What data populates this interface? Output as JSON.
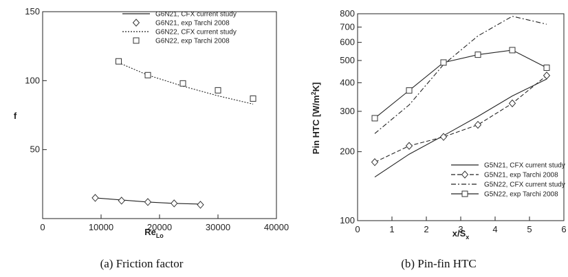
{
  "chart_data": [
    {
      "type": "line",
      "caption": "(a) Friction factor",
      "ylabel": "f",
      "xlabel_main": "Re",
      "xlabel_sub": "Lo",
      "xlim": [
        0,
        40000
      ],
      "ylim": [
        0,
        150
      ],
      "xticks": [
        0,
        10000,
        20000,
        30000,
        40000
      ],
      "yticks": [
        50,
        100,
        150
      ],
      "grid": false,
      "legend_position": "top-right",
      "series": [
        {
          "name": "G6N21, CFX current study",
          "style": "solid",
          "marker": "none",
          "x": [
            9000,
            13500,
            18000,
            22500,
            27000
          ],
          "y": [
            15,
            13.5,
            12,
            11,
            10.5
          ]
        },
        {
          "name": "G6N21, exp Tarchi 2008",
          "style": "none",
          "marker": "diamond",
          "x": [
            9000,
            13500,
            18000,
            22500,
            27000
          ],
          "y": [
            15,
            13,
            12,
            11,
            10
          ]
        },
        {
          "name": "G6N22, CFX current study",
          "style": "dotted",
          "marker": "none",
          "x": [
            13000,
            18000,
            24000,
            30000,
            36000
          ],
          "y": [
            113,
            104,
            96,
            89,
            83
          ]
        },
        {
          "name": "G6N22, exp Tarchi 2008",
          "style": "none",
          "marker": "square",
          "x": [
            13000,
            18000,
            24000,
            30000,
            36000
          ],
          "y": [
            114,
            104,
            98,
            93,
            87
          ]
        }
      ]
    },
    {
      "type": "line",
      "caption": "(b) Pin-fin HTC",
      "ylabel_pre": "Pin HTC [W/m",
      "ylabel_sup": "2",
      "ylabel_post": "K]",
      "xlabel_main": "x/S",
      "xlabel_sub": "x",
      "xlim": [
        0,
        6
      ],
      "ylim": [
        100,
        800
      ],
      "yscale": "log",
      "xticks": [
        0,
        1,
        2,
        3,
        4,
        5,
        6
      ],
      "yticks": [
        100,
        200,
        300,
        400,
        500,
        600,
        700,
        800
      ],
      "grid": false,
      "legend_position": "bottom-right",
      "series": [
        {
          "name": "G5N21, CFX current study",
          "style": "solid",
          "marker": "none",
          "x": [
            0.5,
            1.5,
            2.5,
            3.5,
            4.5,
            5.5
          ],
          "y": [
            155,
            195,
            235,
            285,
            350,
            415
          ]
        },
        {
          "name": "G5N21, exp Tarchi 2008",
          "style": "dashed",
          "marker": "diamond",
          "x": [
            0.5,
            1.5,
            2.5,
            3.5,
            4.5,
            5.5
          ],
          "y": [
            180,
            212,
            232,
            262,
            325,
            430
          ]
        },
        {
          "name": "G5N22, CFX current study",
          "style": "dashdot",
          "marker": "none",
          "x": [
            0.5,
            1.5,
            2.5,
            3.5,
            4.5,
            5.5
          ],
          "y": [
            240,
            320,
            480,
            640,
            780,
            720
          ]
        },
        {
          "name": "G5N22, exp Tarchi 2008",
          "style": "solid",
          "marker": "square",
          "x": [
            0.5,
            1.5,
            2.5,
            3.5,
            4.5,
            5.5
          ],
          "y": [
            280,
            370,
            490,
            530,
            555,
            465
          ]
        }
      ]
    }
  ]
}
